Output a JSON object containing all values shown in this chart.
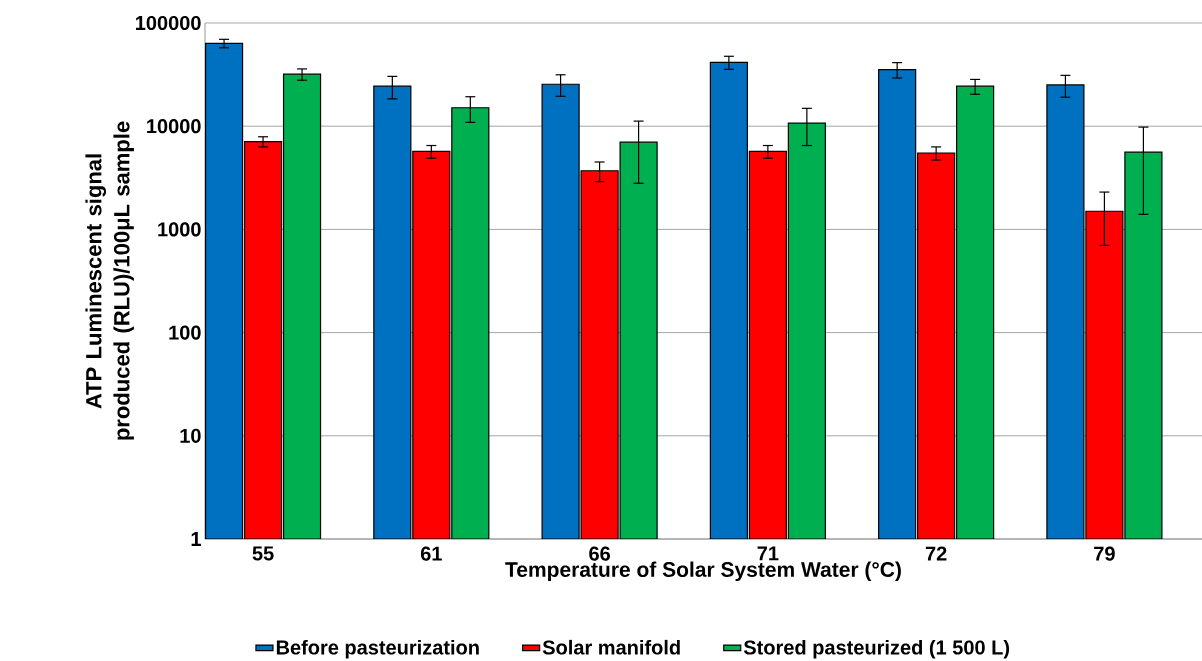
{
  "chart_data": {
    "type": "bar",
    "xlabel": "Temperature of Solar System Water (°C)",
    "ylabel": "ATP Luminescent signal produced (RLU)/100μL sample",
    "categories": [
      "55",
      "61",
      "66",
      "71",
      "72",
      "79"
    ],
    "series": [
      {
        "name": "Before pasteurization",
        "color": "#0070c0",
        "values": [
          63500,
          24400,
          25500,
          41600,
          35300,
          25100
        ],
        "errors": [
          6000,
          6000,
          6000,
          6000,
          6000,
          6000
        ]
      },
      {
        "name": "Solar manifold",
        "color": "#ff0000",
        "values": [
          7100,
          5700,
          3700,
          5700,
          5500,
          1500
        ],
        "errors": [
          800,
          800,
          800,
          800,
          800,
          800
        ]
      },
      {
        "name": "Stored pasteurized (1 500 L)",
        "color": "#00b050",
        "values": [
          31900,
          15100,
          7000,
          10700,
          24400,
          5600
        ],
        "errors": [
          4000,
          4200,
          4200,
          4200,
          4000,
          4200
        ]
      }
    ],
    "ylim": [
      1,
      100000
    ],
    "yticks": [
      1,
      10,
      100,
      1000,
      10000,
      100000
    ],
    "log": true,
    "grid": "y",
    "legend": "bottom"
  }
}
